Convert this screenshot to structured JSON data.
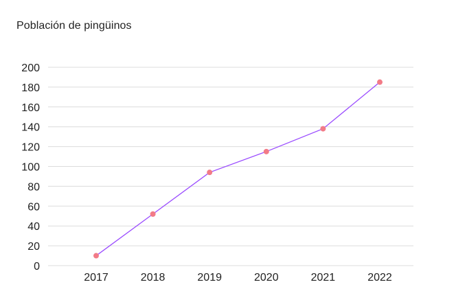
{
  "colors": {
    "line": "#9a4bff",
    "marker": "#f27b87",
    "grid": "#dcdcdc",
    "text": "#1f1f1f"
  },
  "chart_data": {
    "type": "line",
    "title": "Población de pingüinos",
    "xlabel": "",
    "ylabel": "",
    "categories": [
      "2017",
      "2018",
      "2019",
      "2020",
      "2021",
      "2022"
    ],
    "series": [
      {
        "values": [
          10,
          52,
          94,
          115,
          138,
          185
        ]
      }
    ],
    "ylim": [
      0,
      200
    ],
    "yticks": [
      0,
      20,
      40,
      60,
      80,
      100,
      120,
      140,
      160,
      180,
      200
    ],
    "grid": "horizontal",
    "legend": "none"
  }
}
